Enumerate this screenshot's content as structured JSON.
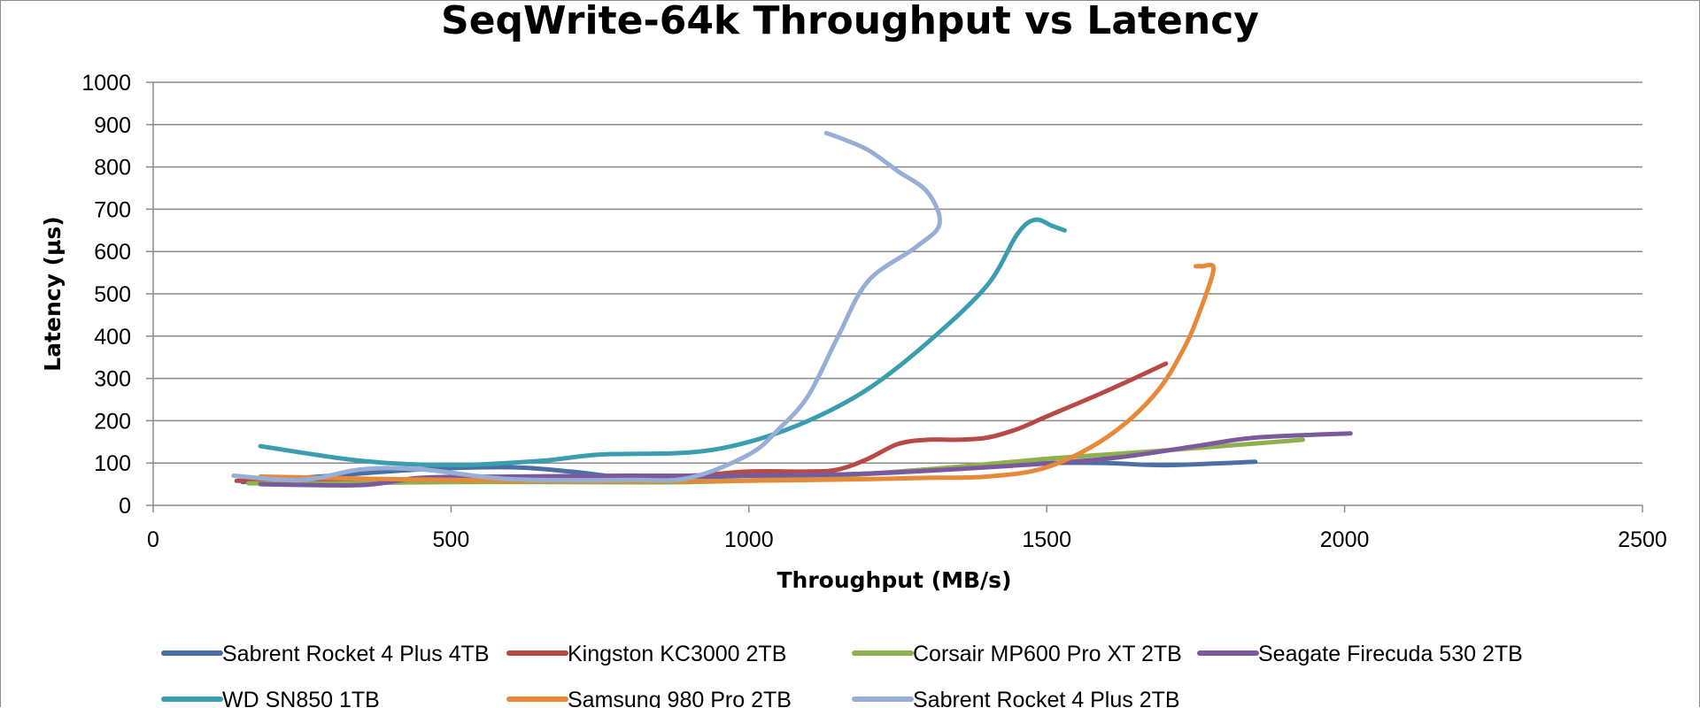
{
  "chart_data": {
    "type": "line",
    "title": "SeqWrite-64k Throughput vs Latency",
    "xlabel": "Throughput (MB/s)",
    "ylabel": "Latency (µs)",
    "xlim": [
      0,
      2500
    ],
    "ylim": [
      0,
      1000
    ],
    "xticks": [
      0,
      500,
      1000,
      1500,
      2000,
      2500
    ],
    "yticks": [
      0,
      100,
      200,
      300,
      400,
      500,
      600,
      700,
      800,
      900,
      1000
    ],
    "grid": "horizontal",
    "legend_position": "bottom",
    "series": [
      {
        "name": "Sabrent Rocket 4 Plus 4TB",
        "color": "#4a6fa5",
        "x": [
          150,
          300,
          450,
          600,
          700,
          800,
          900,
          1000,
          1100,
          1200,
          1300,
          1400,
          1500,
          1600,
          1700,
          1850
        ],
        "y": [
          55,
          70,
          85,
          90,
          80,
          65,
          65,
          70,
          72,
          75,
          85,
          95,
          100,
          100,
          95,
          103
        ]
      },
      {
        "name": "Kingston KC3000 2TB",
        "color": "#b84a45",
        "x": [
          140,
          300,
          500,
          700,
          900,
          1000,
          1100,
          1150,
          1200,
          1250,
          1300,
          1350,
          1400,
          1450,
          1500,
          1600,
          1700
        ],
        "y": [
          58,
          60,
          62,
          62,
          70,
          80,
          80,
          85,
          110,
          145,
          155,
          155,
          160,
          180,
          210,
          270,
          335
        ]
      },
      {
        "name": "Corsair MP600 Pro XT 2TB",
        "color": "#8fb04e",
        "x": [
          160,
          300,
          500,
          700,
          900,
          1100,
          1300,
          1500,
          1700,
          1930
        ],
        "y": [
          52,
          52,
          55,
          55,
          55,
          65,
          85,
          110,
          130,
          155
        ]
      },
      {
        "name": "Seagate Firecuda 530 2TB",
        "color": "#7a5a9c",
        "x": [
          180,
          350,
          450,
          600,
          800,
          1000,
          1200,
          1400,
          1600,
          1750,
          1850,
          2010
        ],
        "y": [
          50,
          48,
          65,
          68,
          70,
          70,
          75,
          90,
          110,
          140,
          160,
          170
        ]
      },
      {
        "name": "WD SN850 1TB",
        "color": "#3a9db0",
        "x": [
          180,
          350,
          500,
          650,
          750,
          900,
          1000,
          1100,
          1200,
          1300,
          1400,
          1450,
          1480,
          1510,
          1530
        ],
        "y": [
          140,
          105,
          95,
          105,
          120,
          125,
          150,
          200,
          275,
          385,
          520,
          640,
          675,
          660,
          650
        ]
      },
      {
        "name": "Samsung 980 Pro 2TB",
        "color": "#e8893a",
        "x": [
          180,
          400,
          700,
          1000,
          1200,
          1300,
          1400,
          1500,
          1600,
          1680,
          1730,
          1760,
          1780,
          1760,
          1750
        ],
        "y": [
          68,
          62,
          57,
          58,
          62,
          65,
          68,
          90,
          160,
          260,
          370,
          470,
          560,
          565,
          565
        ]
      },
      {
        "name": "Sabrent Rocket 4 Plus 2TB",
        "color": "#97afd6",
        "x": [
          135,
          250,
          350,
          450,
          600,
          800,
          900,
          1000,
          1050,
          1100,
          1150,
          1200,
          1280,
          1320,
          1300,
          1250,
          1200,
          1150,
          1130
        ],
        "y": [
          70,
          60,
          85,
          85,
          62,
          60,
          65,
          120,
          180,
          260,
          400,
          530,
          610,
          665,
          740,
          790,
          840,
          870,
          880
        ]
      }
    ]
  }
}
